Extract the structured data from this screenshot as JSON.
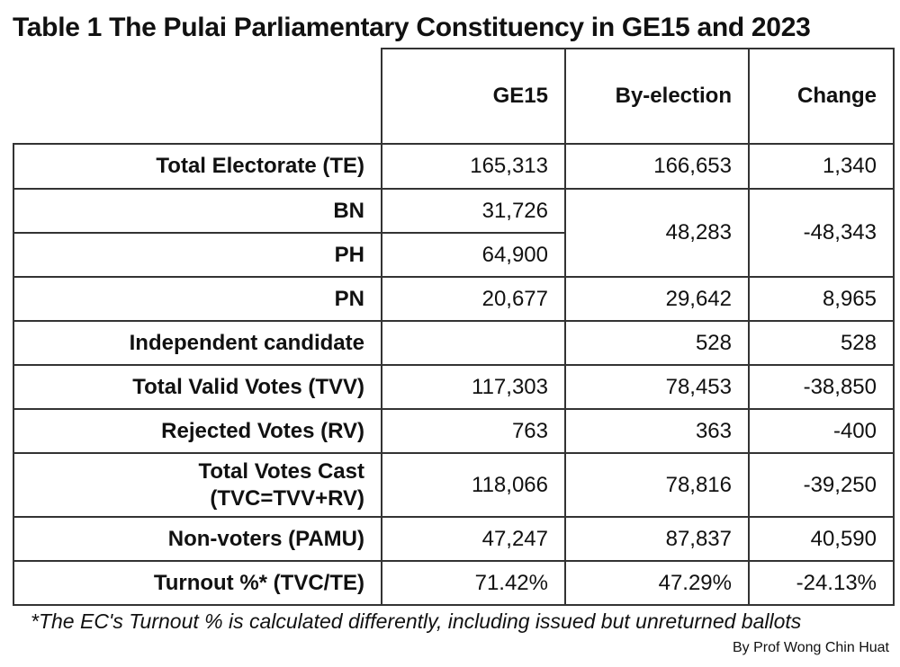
{
  "title": "Table 1 The Pulai Parliamentary Constituency in GE15 and 2023",
  "columns": [
    "GE15",
    "By-election",
    "Change"
  ],
  "rows": {
    "total_electorate": {
      "label": "Total Electorate (TE)",
      "ge15": "165,313",
      "by": "166,653",
      "change": "1,340"
    },
    "bn": {
      "label": "BN",
      "ge15": "31,726"
    },
    "ph": {
      "label": "PH",
      "ge15": "64,900"
    },
    "bn_ph_combined": {
      "by": "48,283",
      "change": "-48,343"
    },
    "pn": {
      "label": "PN",
      "ge15": "20,677",
      "by": "29,642",
      "change": "8,965"
    },
    "independent": {
      "label": "Independent candidate",
      "ge15": "",
      "by": "528",
      "change": "528"
    },
    "tvv": {
      "label": "Total Valid Votes (TVV)",
      "ge15": "117,303",
      "by": "78,453",
      "change": "-38,850"
    },
    "rv": {
      "label": "Rejected Votes (RV)",
      "ge15": "763",
      "by": "363",
      "change": "-400"
    },
    "tvc": {
      "label_line1": "Total Votes Cast",
      "label_line2": "(TVC=TVV+RV)",
      "ge15": "118,066",
      "by": "78,816",
      "change": "-39,250"
    },
    "non_voters": {
      "label": "Non-voters (PAMU)",
      "ge15": "47,247",
      "by": "87,837",
      "change": "40,590"
    },
    "turnout": {
      "label": "Turnout %* (TVC/TE)",
      "ge15": "71.42%",
      "by": "47.29%",
      "change": "-24.13%"
    }
  },
  "footnote": "*The EC's Turnout % is calculated differently, including issued but unreturned ballots",
  "credit": "By Prof Wong Chin Huat"
}
